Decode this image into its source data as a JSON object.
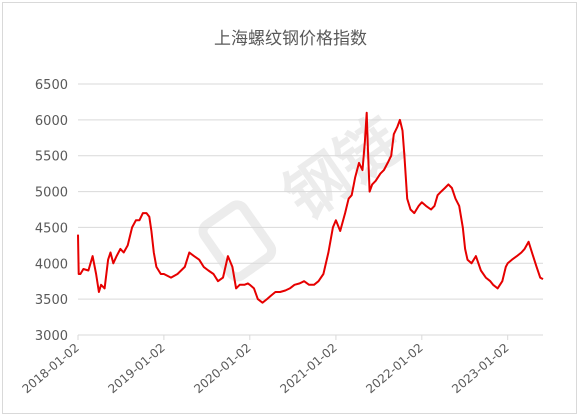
{
  "colors": {
    "line": "#e60000",
    "grid": "#d9d9d9",
    "axis_text": "#595959",
    "watermark": "#cccccc"
  },
  "watermark_icon": "steel-chain-logo-watermark",
  "watermark_text": "钢链",
  "chart_data": {
    "type": "line",
    "title": "上海螺纹钢价格指数",
    "xlabel": "",
    "ylabel": "",
    "ylim": [
      3000,
      6500
    ],
    "yticks": [
      "6500",
      "6000",
      "5500",
      "5000",
      "4500",
      "4000",
      "3500",
      "3000"
    ],
    "xticks": [
      "2018-01-02",
      "2019-01-02",
      "2020-01-02",
      "2021-01-02",
      "2022-01-02",
      "2023-01-02"
    ],
    "grid": true,
    "legend": "none",
    "series": [
      {
        "x": [
          "2018-01-02",
          "2018-01-05",
          "2018-01-12",
          "2018-01-25",
          "2018-02-15",
          "2018-03-05",
          "2018-03-20",
          "2018-04-01",
          "2018-04-10",
          "2018-04-25",
          "2018-05-10",
          "2018-05-20",
          "2018-06-01",
          "2018-06-15",
          "2018-07-01",
          "2018-07-15",
          "2018-08-01",
          "2018-08-20",
          "2018-09-05",
          "2018-09-20",
          "2018-10-05",
          "2018-10-20",
          "2018-11-01",
          "2018-11-10",
          "2018-11-20",
          "2018-12-01",
          "2018-12-20",
          "2019-01-02",
          "2019-02-01",
          "2019-03-01",
          "2019-04-01",
          "2019-04-20",
          "2019-05-10",
          "2019-06-01",
          "2019-06-20",
          "2019-07-10",
          "2019-08-01",
          "2019-08-20",
          "2019-09-10",
          "2019-10-01",
          "2019-10-20",
          "2019-11-05",
          "2019-11-20",
          "2019-12-10",
          "2019-12-25",
          "2020-01-02",
          "2020-01-20",
          "2020-02-05",
          "2020-02-25",
          "2020-03-15",
          "2020-04-01",
          "2020-04-20",
          "2020-05-10",
          "2020-06-01",
          "2020-06-20",
          "2020-07-10",
          "2020-08-01",
          "2020-08-20",
          "2020-09-10",
          "2020-10-01",
          "2020-10-20",
          "2020-11-10",
          "2020-12-01",
          "2020-12-20",
          "2021-01-02",
          "2021-01-20",
          "2021-02-10",
          "2021-02-25",
          "2021-03-10",
          "2021-03-25",
          "2021-04-10",
          "2021-04-25",
          "2021-05-05",
          "2021-05-13",
          "2021-05-18",
          "2021-05-25",
          "2021-06-05",
          "2021-06-20",
          "2021-07-10",
          "2021-07-25",
          "2021-08-10",
          "2021-08-25",
          "2021-09-05",
          "2021-09-20",
          "2021-10-01",
          "2021-10-12",
          "2021-10-20",
          "2021-11-01",
          "2021-11-15",
          "2021-12-01",
          "2021-12-20",
          "2022-01-02",
          "2022-01-20",
          "2022-02-10",
          "2022-02-25",
          "2022-03-10",
          "2022-03-25",
          "2022-04-10",
          "2022-04-25",
          "2022-05-10",
          "2022-05-25",
          "2022-06-10",
          "2022-06-25",
          "2022-07-05",
          "2022-07-15",
          "2022-08-01",
          "2022-08-20",
          "2022-09-10",
          "2022-10-01",
          "2022-10-20",
          "2022-11-01",
          "2022-11-20",
          "2022-12-10",
          "2022-12-25",
          "2023-01-02",
          "2023-01-20",
          "2023-02-10",
          "2023-03-01",
          "2023-03-15",
          "2023-04-01",
          "2023-04-20",
          "2023-05-05",
          "2023-05-20",
          "2023-06-01"
        ],
        "y": [
          4400,
          3850,
          3850,
          3920,
          3900,
          4100,
          3850,
          3600,
          3700,
          3650,
          4050,
          4150,
          4000,
          4100,
          4200,
          4150,
          4250,
          4500,
          4600,
          4600,
          4700,
          4700,
          4650,
          4450,
          4150,
          3950,
          3850,
          3850,
          3800,
          3850,
          3950,
          4150,
          4100,
          4050,
          3950,
          3900,
          3850,
          3750,
          3800,
          4100,
          3950,
          3650,
          3700,
          3700,
          3720,
          3700,
          3650,
          3500,
          3450,
          3500,
          3550,
          3600,
          3600,
          3620,
          3650,
          3700,
          3720,
          3750,
          3700,
          3700,
          3750,
          3850,
          4150,
          4500,
          4600,
          4450,
          4700,
          4900,
          4950,
          5200,
          5400,
          5300,
          5700,
          6100,
          5600,
          5000,
          5100,
          5150,
          5250,
          5300,
          5400,
          5500,
          5800,
          5900,
          6000,
          5850,
          5500,
          4900,
          4750,
          4700,
          4800,
          4850,
          4800,
          4750,
          4800,
          4950,
          5000,
          5050,
          5100,
          5050,
          4900,
          4800,
          4500,
          4200,
          4050,
          4000,
          4100,
          3900,
          3800,
          3750,
          3700,
          3650,
          3750,
          3950,
          4000,
          4050,
          4100,
          4150,
          4200,
          4300,
          4100,
          3950,
          3800,
          3780
        ]
      }
    ]
  }
}
